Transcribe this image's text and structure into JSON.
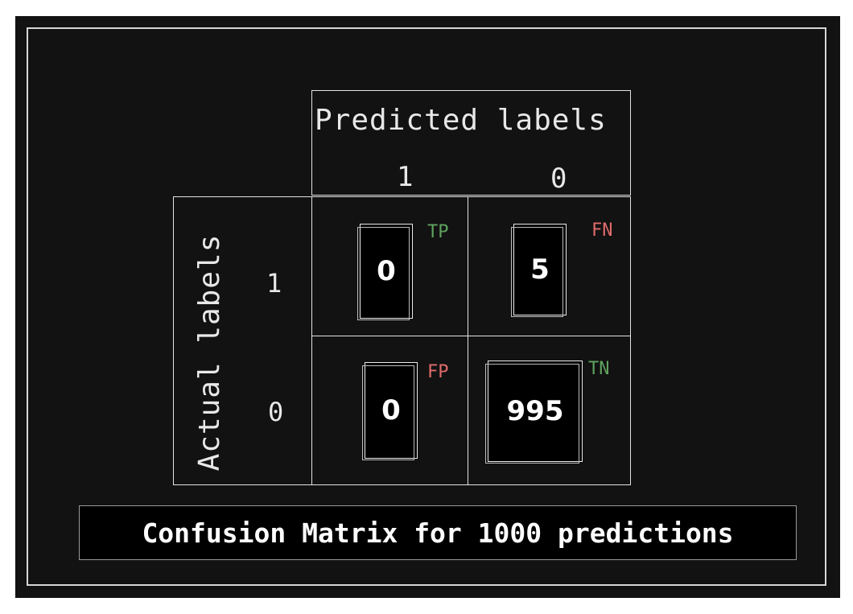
{
  "header": {
    "predicted_title": "Predicted labels",
    "col_labels": [
      "1",
      "0"
    ]
  },
  "side": {
    "actual_title": "Actual labels",
    "row_labels": [
      "1",
      "0"
    ]
  },
  "cells": {
    "tp": {
      "value": "0",
      "tag": "TP",
      "tag_color": "#5fa35f"
    },
    "fn": {
      "value": "5",
      "tag": "FN",
      "tag_color": "#e06b6b"
    },
    "fp": {
      "value": "0",
      "tag": "FP",
      "tag_color": "#e06b6b"
    },
    "tn": {
      "value": "995",
      "tag": "TN",
      "tag_color": "#5fa35f"
    }
  },
  "caption": "Confusion Matrix for 1000 predictions",
  "colors": {
    "background": "#121212",
    "stroke": "#e4e4e4",
    "box_fill": "#000000"
  }
}
